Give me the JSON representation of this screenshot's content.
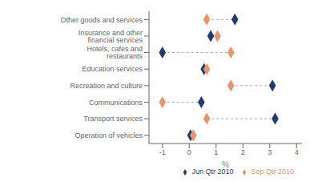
{
  "chart_data": {
    "type": "dumbbell",
    "categories": [
      "Operation of vehicles",
      "Transport services",
      "Communications",
      "Recreation and culture",
      "Education services",
      "Hotels, cafes and restaurants",
      "Insurance and other financial services",
      "Other goods and services"
    ],
    "series": [
      {
        "name": "Jun Qtr 2010",
        "color": "#1f3a6e",
        "marker": "diamond",
        "values": [
          0.05,
          3.2,
          0.45,
          3.1,
          0.55,
          -1.0,
          0.8,
          1.7
        ]
      },
      {
        "name": "Sep Qtr 2010",
        "color": "#e8956d",
        "marker": "diamond",
        "values": [
          0.15,
          0.65,
          -1.0,
          1.55,
          0.65,
          1.55,
          1.05,
          0.65
        ]
      }
    ],
    "xlabel": "%",
    "xlim": [
      -1.5,
      4.2
    ],
    "xticks": [
      -1,
      0,
      1,
      2,
      3,
      4
    ],
    "grid": false,
    "legend": "lower right"
  }
}
